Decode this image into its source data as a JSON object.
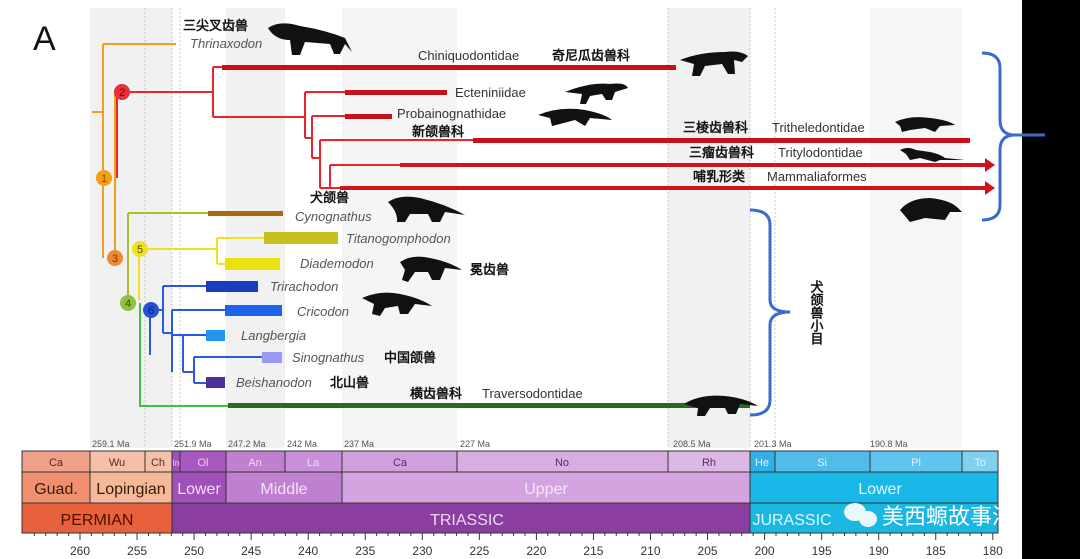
{
  "panel_label": "A",
  "taxa": {
    "thrinaxodon": {
      "latin": "Thrinaxodon",
      "zh": "三尖叉齿兽"
    },
    "chiniquodontidae": {
      "latin": "Chiniquodontidae",
      "zh": "奇尼瓜齿兽科"
    },
    "ecteniniidae": {
      "latin": "Ecteniniidae"
    },
    "probainognathidae": {
      "latin": "Probainognathidae",
      "zh": "新颌兽科"
    },
    "tritheledontidae": {
      "latin": "Tritheledontidae",
      "zh": "三棱齿兽科"
    },
    "tritylodontidae": {
      "latin": "Tritylodontidae",
      "zh": "三瘤齿兽科"
    },
    "mammaliaformes": {
      "latin": "Mammaliaformes",
      "zh": "哺乳形类"
    },
    "cynognathus": {
      "latin": "Cynognathus",
      "zh": "犬颌兽"
    },
    "titanogomphodon": {
      "latin": "Titanogomphodon"
    },
    "diademodon": {
      "latin": "Diademodon",
      "zh": "冕齿兽"
    },
    "trirachodon": {
      "latin": "Trirachodon"
    },
    "cricodon": {
      "latin": "Cricodon"
    },
    "langbergia": {
      "latin": "Langbergia"
    },
    "sinognathus": {
      "latin": "Sinognathus",
      "zh": "中国颌兽"
    },
    "beishanodon": {
      "latin": "Beishanodon",
      "zh": "北山兽"
    },
    "traversodontidae": {
      "latin": "Traversodontidae",
      "zh": "横齿兽科"
    }
  },
  "nodes": [
    "1",
    "2",
    "3",
    "4",
    "5",
    "6"
  ],
  "bracket_label": "犬颌兽小目",
  "timescale": {
    "boundaries_ma": [
      "259.1 Ma",
      "251.9 Ma",
      "247.2 Ma",
      "242 Ma",
      "237 Ma",
      "227 Ma",
      "208.5 Ma",
      "201.3 Ma",
      "190.8 Ma"
    ],
    "stages": [
      "Ca",
      "Wu",
      "Ch",
      "In",
      "Ol",
      "An",
      "La",
      "Ca",
      "No",
      "Rh",
      "He",
      "Si",
      "Pl",
      "To"
    ],
    "epochs": [
      "Guad.",
      "Lopingian",
      "Lower",
      "Middle",
      "Upper",
      "Lower"
    ],
    "periods": [
      "PERMIAN",
      "TRIASSIC",
      "JURASSIC"
    ],
    "ticks": [
      "260",
      "255",
      "250",
      "245",
      "240",
      "235",
      "230",
      "225",
      "220",
      "215",
      "210",
      "205",
      "200",
      "195",
      "190",
      "185",
      "180"
    ]
  },
  "colors": {
    "permian": "#e8603c",
    "triassic": "#8a3fa0",
    "jurassic": "#1ab8e0",
    "red_clade": "#d0141c",
    "bracket": "#3a6cc8"
  },
  "watermark": "美西螈故事汇"
}
